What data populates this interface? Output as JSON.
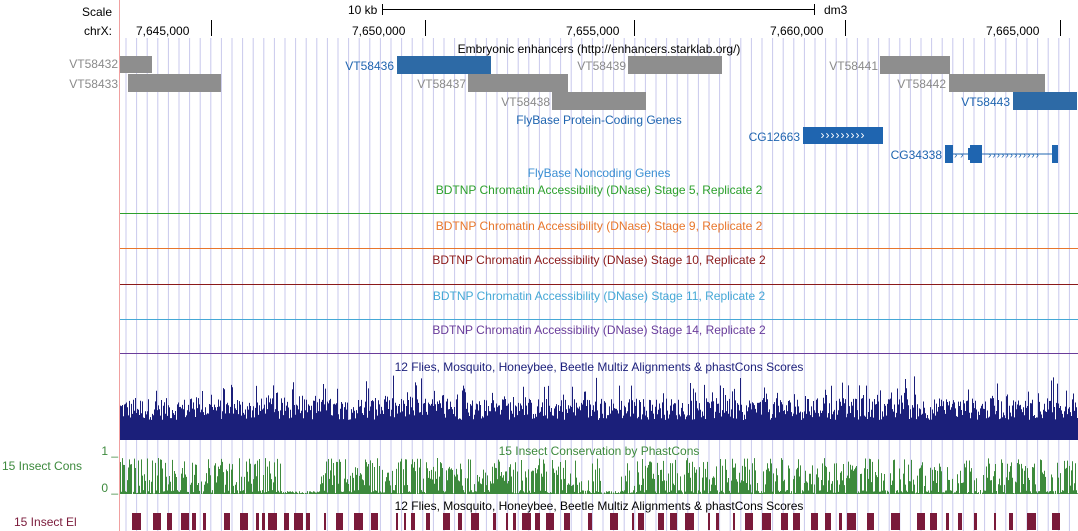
{
  "scale": {
    "label": "Scale",
    "bar_label": "10 kb",
    "assembly": "dm3"
  },
  "ruler": {
    "chrom_label": "chrX:",
    "ticks": [
      "7,645,000",
      "7,650,000",
      "7,655,000",
      "7,660,000",
      "7,665,000"
    ]
  },
  "tracks": {
    "enhancers": {
      "title": "Embryonic enhancers (http://enhancers.starklab.org/)",
      "items": [
        {
          "name": "VT58432",
          "highlight": false
        },
        {
          "name": "VT58433",
          "highlight": false
        },
        {
          "name": "VT58436",
          "highlight": true
        },
        {
          "name": "VT58437",
          "highlight": false
        },
        {
          "name": "VT58439",
          "highlight": false
        },
        {
          "name": "VT58438",
          "highlight": false
        },
        {
          "name": "VT58441",
          "highlight": false
        },
        {
          "name": "VT58442",
          "highlight": false
        },
        {
          "name": "VT58443",
          "highlight": true
        }
      ]
    },
    "protein_coding": {
      "title": "FlyBase Protein-Coding Genes",
      "genes": [
        {
          "name": "CG12663",
          "strand": "+"
        },
        {
          "name": "CG34338",
          "strand": "+"
        }
      ]
    },
    "noncoding": {
      "title": "FlyBase Noncoding Genes"
    },
    "dnase": [
      {
        "title": "BDTNP Chromatin Accessibility (DNase) Stage 5, Replicate 2",
        "color": "#2ca02c"
      },
      {
        "title": "BDTNP Chromatin Accessibility (DNase) Stage 9, Replicate 2",
        "color": "#e8762b"
      },
      {
        "title": "BDTNP Chromatin Accessibility (DNase) Stage 10, Replicate 2",
        "color": "#8b1a1a"
      },
      {
        "title": "BDTNP Chromatin Accessibility (DNase) Stage 11, Replicate 2",
        "color": "#45a8d6"
      },
      {
        "title": "BDTNP Chromatin Accessibility (DNase) Stage 14, Replicate 2",
        "color": "#6a3d9a"
      }
    ],
    "multiz": {
      "title": "12 Flies, Mosquito, Honeybee, Beetle Multiz Alignments & phastCons Scores",
      "color": "#1b1f7a"
    },
    "cons": {
      "title": "15 Insect Conservation by PhastCons",
      "side_label": "15 Insect Cons",
      "y_max_label": "1 _",
      "y_min_label": "0 _",
      "color": "#3d8a3d"
    },
    "elements": {
      "title": "12 Flies, Mosquito, Honeybee, Beetle Multiz Alignments & phastCons Scores",
      "side_label": "15 Insect El",
      "color": "#7a1a3a"
    }
  },
  "colors": {
    "enhancer": "#8e8e8e",
    "highlight": "#2d6aa6",
    "gene": "#1f65b0",
    "gridline": "#c8c8ec",
    "left_border": "#f0a0a0"
  }
}
